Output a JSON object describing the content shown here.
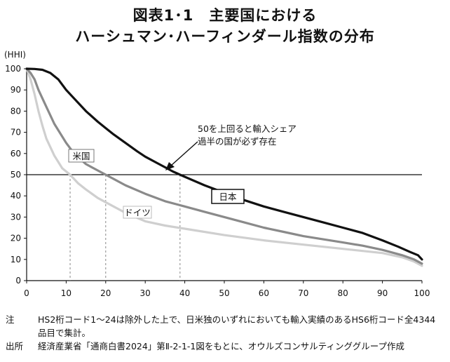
{
  "title_line1": "図表1･1　主要国における",
  "title_line2": "ハーシュマン･ハーフィンダール指数の分布",
  "chart_data": {
    "type": "line",
    "ylabel": "(HHI)",
    "xlim": [
      0,
      100
    ],
    "ylim": [
      0,
      100
    ],
    "xticks": [
      0,
      10,
      20,
      30,
      40,
      50,
      60,
      70,
      80,
      90,
      100
    ],
    "yticks": [
      0,
      10,
      20,
      30,
      40,
      50,
      60,
      70,
      80,
      90,
      100
    ],
    "reference_line_y": 50,
    "series": [
      {
        "name": "日本",
        "color": "#111111",
        "x": [
          0,
          2,
          4,
          6,
          8,
          10,
          12,
          15,
          18,
          20,
          22,
          25,
          28,
          30,
          33,
          36,
          37,
          40,
          45,
          50,
          55,
          60,
          65,
          70,
          75,
          80,
          85,
          90,
          94,
          97,
          99,
          100
        ],
        "y": [
          100,
          99.9,
          99.5,
          98,
          95,
          90,
          86,
          80,
          75,
          72,
          69,
          65,
          61,
          58.5,
          55.5,
          52.5,
          51.5,
          49,
          45,
          41.5,
          38,
          35,
          32.5,
          30,
          27.5,
          25,
          22.5,
          19,
          16,
          13.5,
          12,
          10
        ]
      },
      {
        "name": "米国",
        "color": "#8a8a8a",
        "x": [
          0,
          1,
          2,
          3,
          5,
          7,
          10,
          12,
          15,
          18,
          20,
          25,
          30,
          35,
          40,
          45,
          50,
          55,
          60,
          65,
          70,
          75,
          80,
          85,
          90,
          95,
          98,
          100
        ],
        "y": [
          100,
          98,
          95,
          90,
          82,
          74,
          65,
          60,
          55,
          52,
          50,
          45,
          41,
          37.5,
          35,
          32.5,
          30,
          27.5,
          25,
          23,
          21,
          19.5,
          18,
          16.5,
          14.5,
          12,
          10,
          8
        ]
      },
      {
        "name": "ドイツ",
        "color": "#cfcfcf",
        "x": [
          0,
          1,
          2,
          3,
          4,
          5,
          7,
          9,
          11,
          13,
          15,
          18,
          20,
          25,
          30,
          35,
          40,
          50,
          60,
          70,
          80,
          90,
          95,
          98,
          100
        ],
        "y": [
          100,
          95,
          88,
          80,
          73,
          67,
          59,
          53,
          50,
          46,
          43,
          39,
          37,
          32,
          28,
          26,
          24.5,
          21.5,
          19,
          17,
          15,
          13,
          11,
          9,
          7
        ]
      }
    ],
    "annotation": "50を上回ると輸入シェア\n過半の国が必ず存在"
  },
  "notes": [
    {
      "head": "注",
      "body": "HS2桁コード1～24は除外した上で、日米独のいずれにおいても輸入実績のあるHS6桁コード全4344品目で集計。"
    },
    {
      "head": "出所",
      "body": "経済産業省「通商白書2024」第Ⅱ-2-1-1図をもとに、オウルズコンサルティンググループ作成"
    }
  ],
  "colors": {
    "axis": "#111111",
    "japan": "#111111",
    "usa": "#8a8a8a",
    "germany": "#cfcfcf",
    "drop_lines": "#888888"
  }
}
